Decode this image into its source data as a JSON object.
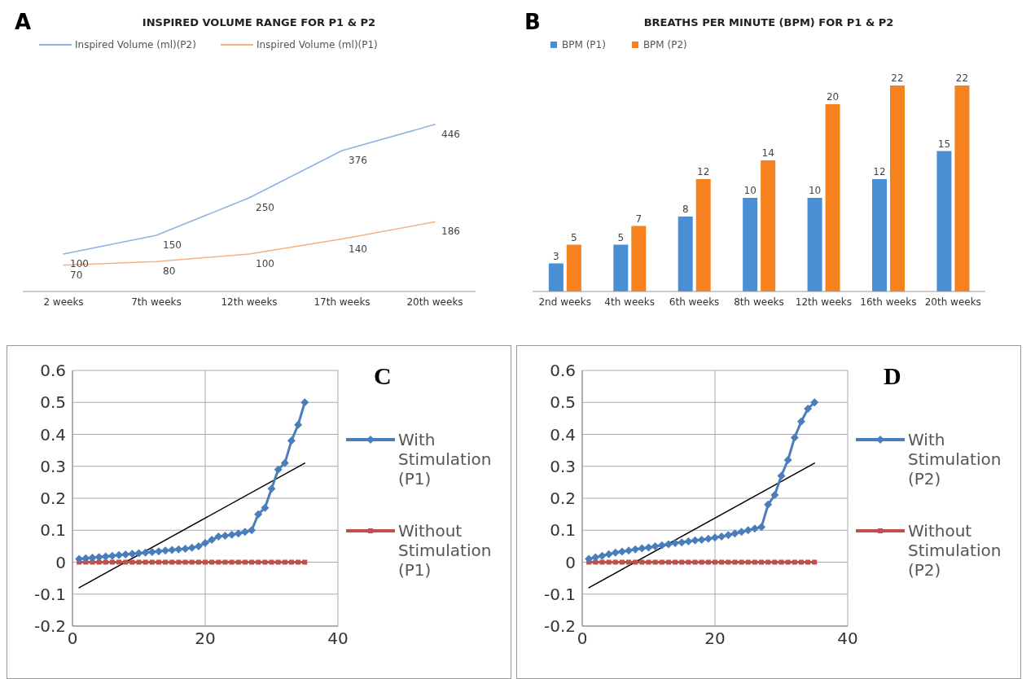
{
  "chart_data": [
    {
      "type": "line",
      "title": "INSPIRED VOLUME RANGE FOR P1 & P2",
      "annotations": [
        "A"
      ],
      "categories": [
        "2 weeks",
        "7th weeks",
        "12th weeks",
        "17th weeks",
        "20th weeks"
      ],
      "series": [
        {
          "name": "Inspired Volume (ml)(P2)",
          "color": "#8db3e2",
          "values": [
            100,
            150,
            250,
            376,
            446
          ]
        },
        {
          "name": "Inspired Volume (ml)(P1)",
          "color": "#f4b183",
          "values": [
            70,
            80,
            100,
            140,
            186
          ]
        }
      ],
      "data_labels": true,
      "legend": "top left",
      "marker": "none",
      "line_style": "solid"
    },
    {
      "type": "bar",
      "title": "BREATHS PER MINUTE (BPM) FOR P1 & P2",
      "annotations": [
        "B"
      ],
      "categories": [
        "2nd weeks",
        "4th weeks",
        "6th weeks",
        "8th weeks",
        "12th weeks",
        "16th weeks",
        "20th weeks"
      ],
      "series": [
        {
          "name": "BPM (P1)",
          "color": "#4a8fd4",
          "values": [
            3,
            5,
            8,
            10,
            10,
            12,
            15
          ]
        },
        {
          "name": "BPM (P2)",
          "color": "#f5821f",
          "values": [
            5,
            7,
            12,
            14,
            20,
            22,
            22
          ]
        }
      ],
      "data_labels": true,
      "legend": "top left"
    },
    {
      "type": "line",
      "annotations": [
        "C"
      ],
      "xlim": [
        0,
        40
      ],
      "xticks": [
        0,
        20,
        40
      ],
      "ylim": [
        -0.2,
        0.6
      ],
      "yticks": [
        -0.2,
        -0.1,
        0,
        0.1,
        0.2,
        0.3,
        0.4,
        0.5,
        0.6
      ],
      "grid": true,
      "legend": "right",
      "line_style": "solid",
      "series": [
        {
          "name": "With Stimulation (P1)",
          "color": "#4a7ebb",
          "marker": "diamond",
          "x": [
            1,
            2,
            3,
            4,
            5,
            6,
            7,
            8,
            9,
            10,
            11,
            12,
            13,
            14,
            15,
            16,
            17,
            18,
            19,
            20,
            21,
            22,
            23,
            24,
            25,
            26,
            27,
            28,
            29,
            30,
            31,
            32,
            33,
            34,
            35
          ],
          "values": [
            0.01,
            0.012,
            0.014,
            0.016,
            0.018,
            0.02,
            0.022,
            0.024,
            0.026,
            0.028,
            0.03,
            0.032,
            0.034,
            0.036,
            0.038,
            0.04,
            0.042,
            0.045,
            0.05,
            0.06,
            0.07,
            0.08,
            0.083,
            0.086,
            0.09,
            0.095,
            0.1,
            0.15,
            0.17,
            0.23,
            0.29,
            0.31,
            0.38,
            0.43,
            0.5
          ]
        },
        {
          "name": "Without Stimulation (P1)",
          "color": "#c0504d",
          "marker": "square",
          "x": [
            1,
            2,
            3,
            4,
            5,
            6,
            7,
            8,
            9,
            10,
            11,
            12,
            13,
            14,
            15,
            16,
            17,
            18,
            19,
            20,
            21,
            22,
            23,
            24,
            25,
            26,
            27,
            28,
            29,
            30,
            31,
            32,
            33,
            34,
            35
          ],
          "values": [
            0,
            0,
            0,
            0,
            0,
            0,
            0,
            0,
            0,
            0,
            0,
            0,
            0,
            0,
            0,
            0,
            0,
            0,
            0,
            0,
            0,
            0,
            0,
            0,
            0,
            0,
            0,
            0,
            0,
            0,
            0,
            0,
            0,
            0,
            0
          ]
        },
        {
          "type": "line",
          "color": "#000000",
          "marker": "none",
          "x": [
            1,
            35
          ],
          "values": [
            -0.08,
            0.31
          ]
        }
      ]
    },
    {
      "type": "line",
      "annotations": [
        "D"
      ],
      "xlim": [
        0,
        40
      ],
      "xticks": [
        0,
        20,
        40
      ],
      "ylim": [
        -0.2,
        0.6
      ],
      "yticks": [
        -0.2,
        -0.1,
        0,
        0.1,
        0.2,
        0.3,
        0.4,
        0.5,
        0.6
      ],
      "grid": true,
      "legend": "right",
      "line_style": "solid",
      "series": [
        {
          "name": "With Stimulation (P2)",
          "color": "#4a7ebb",
          "marker": "diamond",
          "x": [
            1,
            2,
            3,
            4,
            5,
            6,
            7,
            8,
            9,
            10,
            11,
            12,
            13,
            14,
            15,
            16,
            17,
            18,
            19,
            20,
            21,
            22,
            23,
            24,
            25,
            26,
            27,
            28,
            29,
            30,
            31,
            32,
            33,
            34,
            35
          ],
          "values": [
            0.01,
            0.015,
            0.02,
            0.025,
            0.03,
            0.033,
            0.036,
            0.04,
            0.043,
            0.046,
            0.05,
            0.053,
            0.056,
            0.06,
            0.062,
            0.065,
            0.068,
            0.07,
            0.073,
            0.077,
            0.08,
            0.085,
            0.09,
            0.095,
            0.1,
            0.105,
            0.11,
            0.18,
            0.21,
            0.27,
            0.32,
            0.39,
            0.44,
            0.48,
            0.5
          ]
        },
        {
          "name": "Without Stimulation (P2)",
          "color": "#c0504d",
          "marker": "square",
          "x": [
            1,
            2,
            3,
            4,
            5,
            6,
            7,
            8,
            9,
            10,
            11,
            12,
            13,
            14,
            15,
            16,
            17,
            18,
            19,
            20,
            21,
            22,
            23,
            24,
            25,
            26,
            27,
            28,
            29,
            30,
            31,
            32,
            33,
            34,
            35
          ],
          "values": [
            0,
            0,
            0,
            0,
            0,
            0,
            0,
            0,
            0,
            0,
            0,
            0,
            0,
            0,
            0,
            0,
            0,
            0,
            0,
            0,
            0,
            0,
            0,
            0,
            0,
            0,
            0,
            0,
            0,
            0,
            0,
            0,
            0,
            0,
            0
          ]
        },
        {
          "type": "line",
          "color": "#000000",
          "marker": "none",
          "x": [
            1,
            35
          ],
          "values": [
            -0.08,
            0.31
          ]
        }
      ]
    }
  ]
}
